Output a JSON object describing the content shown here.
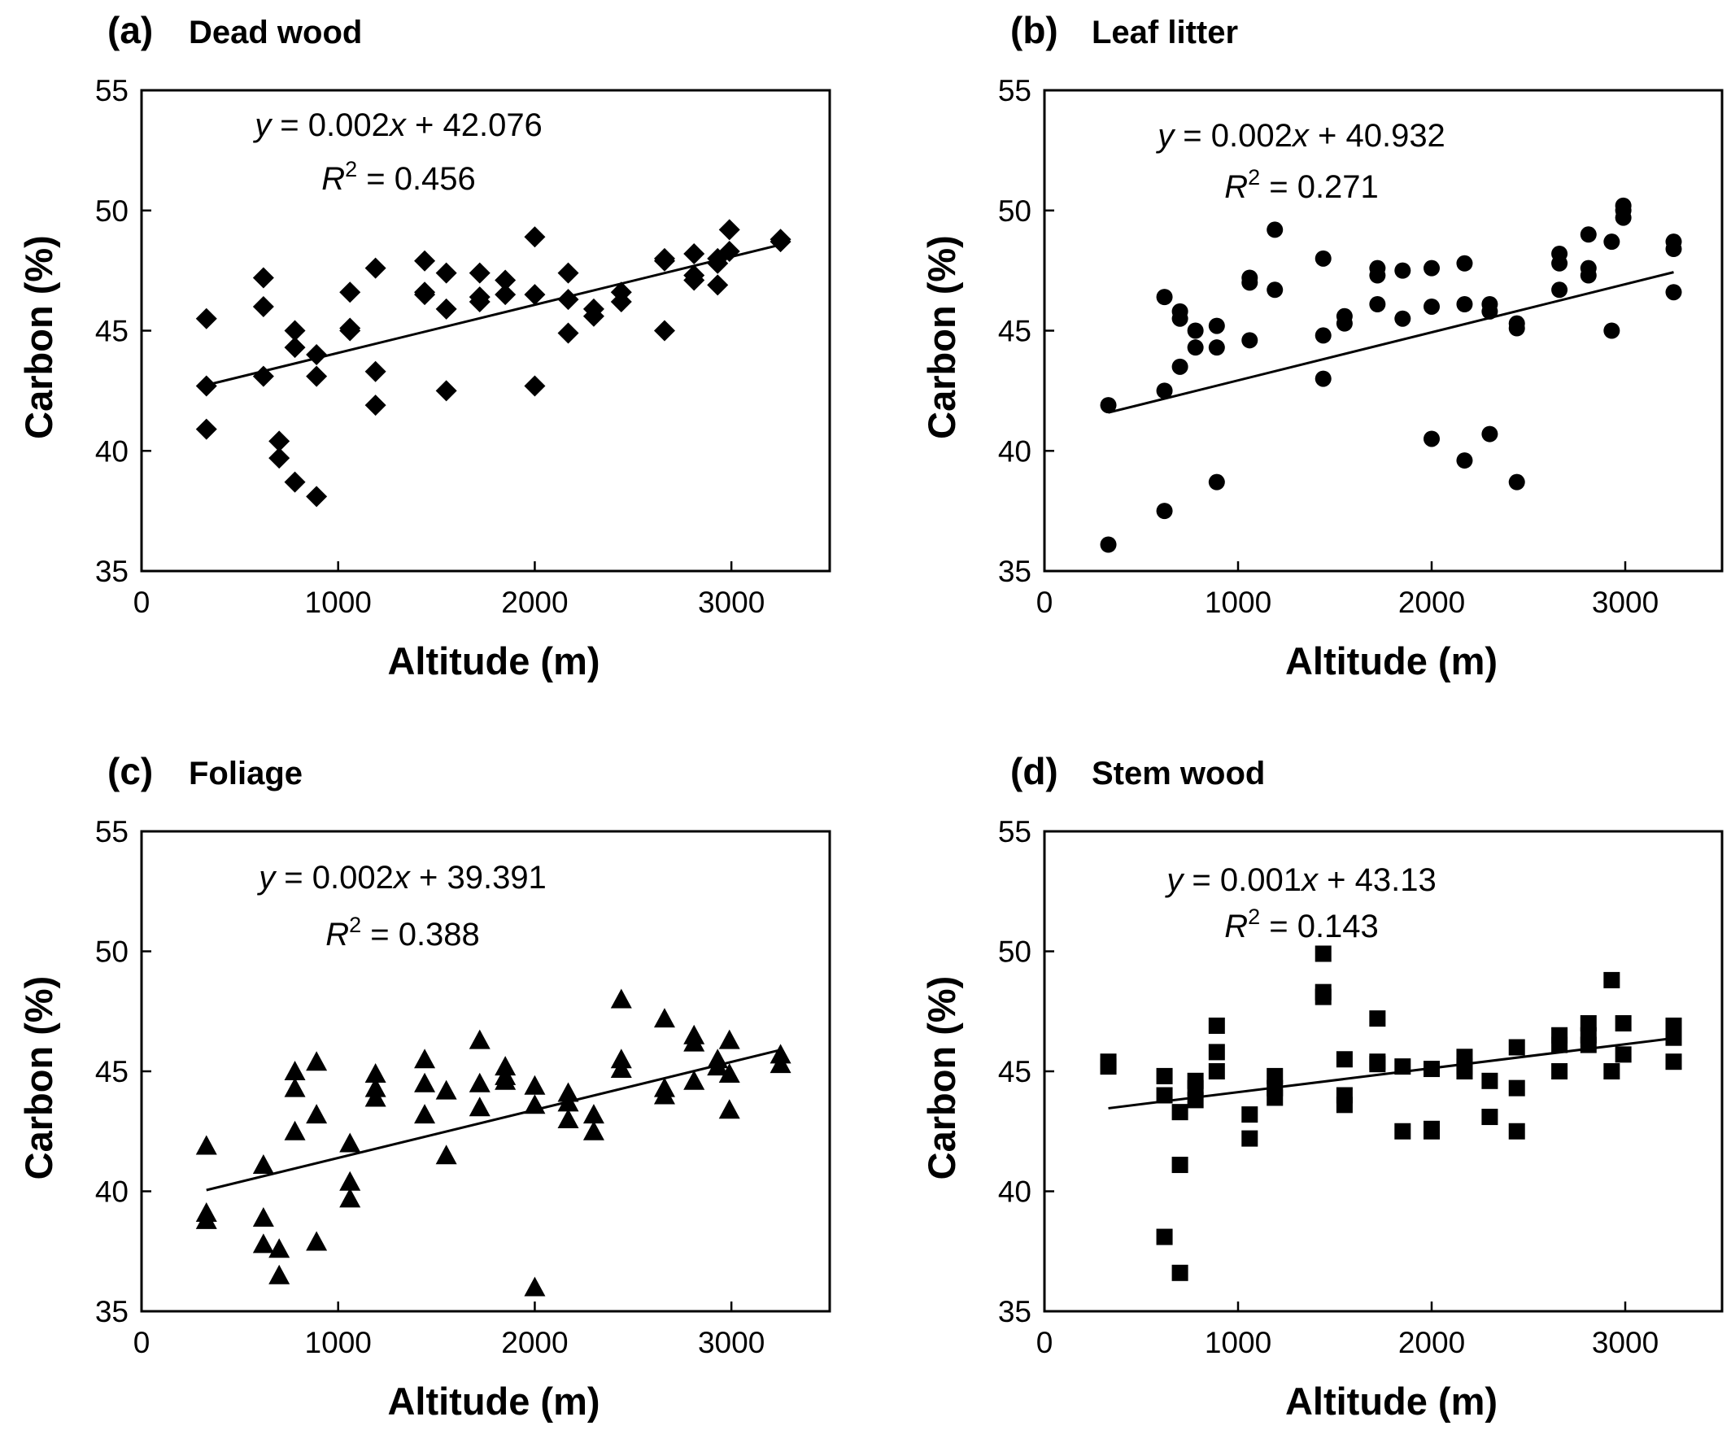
{
  "chart_data": [
    {
      "type": "scatter",
      "panel_label": "(a)",
      "title": "Dead wood",
      "xlabel": "Altitude (m)",
      "ylabel": "Carbon (%)",
      "xlim": [
        0,
        3500
      ],
      "ylim": [
        35,
        55
      ],
      "xticks": [
        0,
        1000,
        2000,
        3000
      ],
      "yticks": [
        35,
        40,
        45,
        50,
        55
      ],
      "marker": "diamond",
      "equation": {
        "prefix": "y",
        "middle": " = 0.002",
        "var": "x",
        "suffix": " + 42.076"
      },
      "r2": {
        "sym": "R",
        "sup": "2",
        "rest": " = 0.456"
      },
      "fit": {
        "slope": 0.002,
        "intercept": 42.076,
        "x": [
          330,
          3250
        ]
      },
      "points": [
        [
          330,
          45.5
        ],
        [
          330,
          42.7
        ],
        [
          330,
          40.9
        ],
        [
          620,
          47.2
        ],
        [
          620,
          46.0
        ],
        [
          620,
          43.1
        ],
        [
          700,
          40.4
        ],
        [
          700,
          39.7
        ],
        [
          780,
          45.0
        ],
        [
          780,
          44.3
        ],
        [
          780,
          38.7
        ],
        [
          890,
          44.0
        ],
        [
          890,
          43.1
        ],
        [
          890,
          38.1
        ],
        [
          1060,
          46.6
        ],
        [
          1060,
          45.1
        ],
        [
          1060,
          45.0
        ],
        [
          1190,
          47.6
        ],
        [
          1190,
          43.3
        ],
        [
          1190,
          41.9
        ],
        [
          1440,
          47.9
        ],
        [
          1440,
          46.6
        ],
        [
          1440,
          46.5
        ],
        [
          1550,
          47.4
        ],
        [
          1550,
          45.9
        ],
        [
          1550,
          42.5
        ],
        [
          1720,
          47.4
        ],
        [
          1720,
          46.4
        ],
        [
          1720,
          46.2
        ],
        [
          1850,
          47.1
        ],
        [
          1850,
          46.5
        ],
        [
          2000,
          48.9
        ],
        [
          2000,
          46.5
        ],
        [
          2000,
          42.7
        ],
        [
          2170,
          47.4
        ],
        [
          2170,
          46.3
        ],
        [
          2170,
          44.9
        ],
        [
          2300,
          45.9
        ],
        [
          2300,
          45.6
        ],
        [
          2440,
          46.6
        ],
        [
          2440,
          46.2
        ],
        [
          2660,
          48.0
        ],
        [
          2660,
          47.9
        ],
        [
          2660,
          45.0
        ],
        [
          2810,
          48.2
        ],
        [
          2810,
          47.3
        ],
        [
          2810,
          47.1
        ],
        [
          2930,
          48.0
        ],
        [
          2930,
          47.8
        ],
        [
          2930,
          46.9
        ],
        [
          2990,
          49.2
        ],
        [
          2990,
          48.3
        ],
        [
          3250,
          48.8
        ],
        [
          3250,
          48.7
        ]
      ]
    },
    {
      "type": "scatter",
      "panel_label": "(b)",
      "title": "Leaf litter",
      "xlabel": "Altitude (m)",
      "ylabel": "Carbon (%)",
      "xlim": [
        0,
        3500
      ],
      "ylim": [
        35,
        55
      ],
      "xticks": [
        0,
        1000,
        2000,
        3000
      ],
      "yticks": [
        35,
        40,
        45,
        50,
        55
      ],
      "marker": "circle",
      "equation": {
        "prefix": "y",
        "middle": " = 0.002",
        "var": "x",
        "suffix": " + 40.932"
      },
      "r2": {
        "sym": "R",
        "sup": "2",
        "rest": " = 0.271"
      },
      "fit": {
        "slope": 0.002,
        "intercept": 40.932,
        "x": [
          330,
          3250
        ]
      },
      "points": [
        [
          330,
          41.9
        ],
        [
          330,
          36.1
        ],
        [
          620,
          46.4
        ],
        [
          620,
          42.5
        ],
        [
          620,
          37.5
        ],
        [
          700,
          45.8
        ],
        [
          700,
          45.5
        ],
        [
          700,
          43.5
        ],
        [
          780,
          45.0
        ],
        [
          780,
          44.3
        ],
        [
          890,
          45.2
        ],
        [
          890,
          44.3
        ],
        [
          890,
          38.7
        ],
        [
          1060,
          47.2
        ],
        [
          1060,
          47.0
        ],
        [
          1060,
          44.6
        ],
        [
          1190,
          49.2
        ],
        [
          1190,
          46.7
        ],
        [
          1440,
          48.0
        ],
        [
          1440,
          44.8
        ],
        [
          1440,
          43.0
        ],
        [
          1550,
          45.6
        ],
        [
          1550,
          45.3
        ],
        [
          1720,
          47.6
        ],
        [
          1720,
          47.3
        ],
        [
          1720,
          46.1
        ],
        [
          1850,
          47.5
        ],
        [
          1850,
          45.5
        ],
        [
          2000,
          47.6
        ],
        [
          2000,
          46.0
        ],
        [
          2000,
          40.5
        ],
        [
          2170,
          47.8
        ],
        [
          2170,
          46.1
        ],
        [
          2170,
          39.6
        ],
        [
          2300,
          46.1
        ],
        [
          2300,
          45.8
        ],
        [
          2300,
          40.7
        ],
        [
          2440,
          45.3
        ],
        [
          2440,
          45.1
        ],
        [
          2440,
          38.7
        ],
        [
          2660,
          48.2
        ],
        [
          2660,
          47.8
        ],
        [
          2660,
          46.7
        ],
        [
          2810,
          49.0
        ],
        [
          2810,
          47.6
        ],
        [
          2810,
          47.3
        ],
        [
          2930,
          48.7
        ],
        [
          2930,
          45.0
        ],
        [
          2990,
          50.2
        ],
        [
          2990,
          50.0
        ],
        [
          2990,
          49.7
        ],
        [
          3250,
          48.7
        ],
        [
          3250,
          48.4
        ],
        [
          3250,
          46.6
        ]
      ]
    },
    {
      "type": "scatter",
      "panel_label": "(c)",
      "title": "Foliage",
      "xlabel": "Altitude (m)",
      "ylabel": "Carbon (%)",
      "xlim": [
        0,
        3500
      ],
      "ylim": [
        35,
        55
      ],
      "xticks": [
        0,
        1000,
        2000,
        3000
      ],
      "yticks": [
        35,
        40,
        45,
        50,
        55
      ],
      "marker": "triangle",
      "equation": {
        "prefix": "y",
        "middle": " = 0.002",
        "var": "x",
        "suffix": " + 39.391"
      },
      "r2": {
        "sym": "R",
        "sup": "2",
        "rest": " = 0.388"
      },
      "fit": {
        "slope": 0.002,
        "intercept": 39.391,
        "x": [
          330,
          3250
        ]
      },
      "points": [
        [
          330,
          41.9
        ],
        [
          330,
          39.1
        ],
        [
          330,
          38.8
        ],
        [
          620,
          41.1
        ],
        [
          620,
          38.9
        ],
        [
          620,
          37.8
        ],
        [
          700,
          37.6
        ],
        [
          700,
          36.5
        ],
        [
          780,
          45.0
        ],
        [
          780,
          44.3
        ],
        [
          780,
          42.5
        ],
        [
          890,
          45.4
        ],
        [
          890,
          43.2
        ],
        [
          890,
          37.9
        ],
        [
          1060,
          42.0
        ],
        [
          1060,
          40.4
        ],
        [
          1060,
          39.7
        ],
        [
          1190,
          44.9
        ],
        [
          1190,
          44.3
        ],
        [
          1190,
          43.9
        ],
        [
          1440,
          45.5
        ],
        [
          1440,
          44.5
        ],
        [
          1440,
          43.2
        ],
        [
          1550,
          44.2
        ],
        [
          1550,
          41.5
        ],
        [
          1720,
          46.3
        ],
        [
          1720,
          44.5
        ],
        [
          1720,
          43.5
        ],
        [
          1850,
          45.2
        ],
        [
          1850,
          44.8
        ],
        [
          1850,
          44.6
        ],
        [
          2000,
          44.4
        ],
        [
          2000,
          43.6
        ],
        [
          2000,
          36.0
        ],
        [
          2170,
          44.1
        ],
        [
          2170,
          43.7
        ],
        [
          2170,
          43.0
        ],
        [
          2300,
          43.2
        ],
        [
          2300,
          42.5
        ],
        [
          2440,
          48.0
        ],
        [
          2440,
          45.5
        ],
        [
          2440,
          45.1
        ],
        [
          2660,
          47.2
        ],
        [
          2660,
          44.3
        ],
        [
          2660,
          44.0
        ],
        [
          2810,
          46.5
        ],
        [
          2810,
          46.2
        ],
        [
          2810,
          44.6
        ],
        [
          2930,
          45.5
        ],
        [
          2930,
          45.2
        ],
        [
          2990,
          46.3
        ],
        [
          2990,
          44.9
        ],
        [
          2990,
          43.4
        ],
        [
          3250,
          45.7
        ],
        [
          3250,
          45.3
        ]
      ]
    },
    {
      "type": "scatter",
      "panel_label": "(d)",
      "title": "Stem wood",
      "xlabel": "Altitude (m)",
      "ylabel": "Carbon (%)",
      "xlim": [
        0,
        3500
      ],
      "ylim": [
        35,
        55
      ],
      "xticks": [
        0,
        1000,
        2000,
        3000
      ],
      "yticks": [
        35,
        40,
        45,
        50,
        55
      ],
      "marker": "square",
      "equation": {
        "prefix": "y",
        "middle": " = 0.001",
        "var": "x",
        "suffix": " + 43.13"
      },
      "r2": {
        "sym": "R",
        "sup": "2",
        "rest": " = 0.143"
      },
      "fit": {
        "slope": 0.001,
        "intercept": 43.13,
        "x": [
          330,
          3250
        ]
      },
      "points": [
        [
          330,
          45.4
        ],
        [
          330,
          45.2
        ],
        [
          620,
          44.8
        ],
        [
          620,
          44.0
        ],
        [
          620,
          38.1
        ],
        [
          700,
          43.3
        ],
        [
          700,
          41.1
        ],
        [
          700,
          36.6
        ],
        [
          780,
          44.6
        ],
        [
          780,
          44.3
        ],
        [
          780,
          43.8
        ],
        [
          890,
          46.9
        ],
        [
          890,
          45.8
        ],
        [
          890,
          45.0
        ],
        [
          1060,
          43.2
        ],
        [
          1060,
          42.2
        ],
        [
          1190,
          44.8
        ],
        [
          1190,
          44.3
        ],
        [
          1190,
          43.9
        ],
        [
          1440,
          49.9
        ],
        [
          1440,
          48.3
        ],
        [
          1440,
          48.1
        ],
        [
          1550,
          45.5
        ],
        [
          1550,
          44.0
        ],
        [
          1550,
          43.6
        ],
        [
          1720,
          47.2
        ],
        [
          1720,
          45.4
        ],
        [
          1720,
          45.3
        ],
        [
          1850,
          45.2
        ],
        [
          1850,
          42.5
        ],
        [
          2000,
          45.1
        ],
        [
          2000,
          42.6
        ],
        [
          2000,
          42.5
        ],
        [
          2170,
          45.6
        ],
        [
          2170,
          45.2
        ],
        [
          2170,
          45.0
        ],
        [
          2300,
          44.6
        ],
        [
          2300,
          43.1
        ],
        [
          2440,
          46.0
        ],
        [
          2440,
          44.3
        ],
        [
          2440,
          42.5
        ],
        [
          2660,
          46.5
        ],
        [
          2660,
          46.1
        ],
        [
          2660,
          45.0
        ],
        [
          2810,
          47.0
        ],
        [
          2810,
          46.5
        ],
        [
          2810,
          46.1
        ],
        [
          2930,
          48.8
        ],
        [
          2930,
          45.0
        ],
        [
          2990,
          47.0
        ],
        [
          2990,
          45.7
        ],
        [
          3250,
          46.9
        ],
        [
          3250,
          46.4
        ],
        [
          3250,
          45.4
        ]
      ]
    }
  ]
}
